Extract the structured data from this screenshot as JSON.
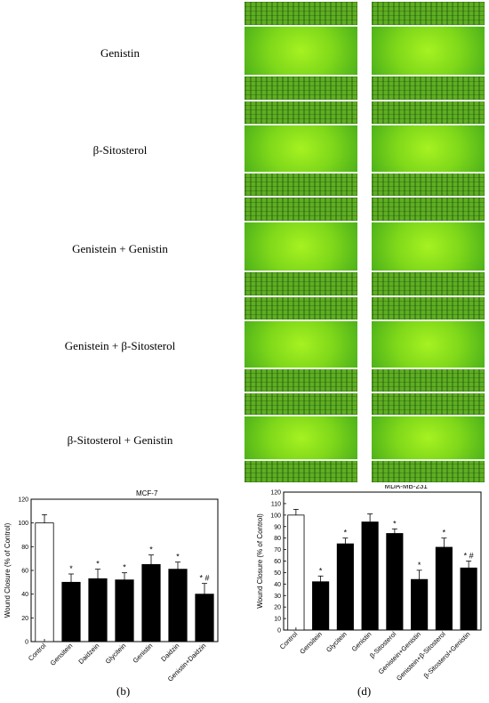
{
  "image_rows": [
    {
      "label": "Genistin"
    },
    {
      "label": "β-Sitosterol"
    },
    {
      "label": "Genistein + Genistin"
    },
    {
      "label": "Genistein + β-Sitosterol"
    },
    {
      "label": "β-Sitosterol + Genistin"
    }
  ],
  "panel_labels": {
    "b": "(b)",
    "d": "(d)"
  },
  "chart_data": [
    {
      "type": "bar",
      "title": "MCF-7",
      "ylabel": "Wound Closure (% of Control)",
      "xlabel": "",
      "ylim": [
        0,
        120
      ],
      "yticks": [
        0,
        20,
        40,
        60,
        80,
        100,
        120
      ],
      "grid": false,
      "categories": [
        "Control",
        "Gensitein",
        "Daidzein",
        "Glycitein",
        "Genistin",
        "Daidzin",
        "Genistin+Daidzin"
      ],
      "values": [
        100,
        50,
        53,
        52,
        65,
        61,
        40
      ],
      "errors": [
        7,
        7,
        8,
        6,
        8,
        6,
        9
      ],
      "bar_colors": [
        "#ffffff",
        "#000000",
        "#000000",
        "#000000",
        "#000000",
        "#000000",
        "#000000"
      ],
      "annotations": [
        "",
        "*",
        "*",
        "*",
        "*",
        "*",
        "* #"
      ]
    },
    {
      "type": "bar",
      "title": "MDA-MB-231",
      "ylabel": "Wound Closure (% of Control)",
      "xlabel": "",
      "ylim": [
        0,
        120
      ],
      "yticks": [
        0,
        10,
        20,
        30,
        40,
        50,
        60,
        70,
        80,
        90,
        100,
        110,
        120
      ],
      "grid": false,
      "categories": [
        "Control",
        "Gensitein",
        "Glycitein",
        "Genistin",
        "β-Sitosterol",
        "Genistein+Genistin",
        "Genistein+β-Sitosterol",
        "β-Sitosterol+Genistin"
      ],
      "values": [
        100,
        42,
        75,
        94,
        84,
        44,
        72,
        54
      ],
      "errors": [
        5,
        5,
        5,
        7,
        4,
        8,
        8,
        6
      ],
      "bar_colors": [
        "#ffffff",
        "#000000",
        "#000000",
        "#000000",
        "#000000",
        "#000000",
        "#000000",
        "#000000"
      ],
      "annotations": [
        "",
        "*",
        "*",
        "",
        "*",
        "*",
        "*",
        "* #"
      ]
    }
  ]
}
